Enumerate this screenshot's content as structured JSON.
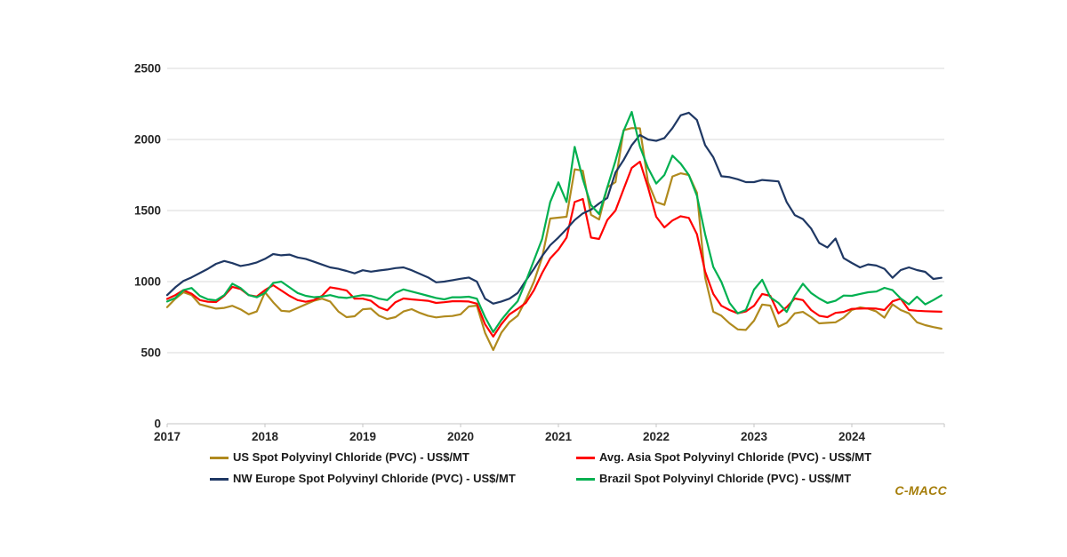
{
  "chart_data": {
    "type": "line",
    "title": "",
    "xlabel": "",
    "ylabel": "",
    "x_start_year": 2017,
    "points_per_year": 12,
    "x_tick_labels": [
      "2017",
      "2018",
      "2019",
      "2020",
      "2021",
      "2022",
      "2023",
      "2024"
    ],
    "ylim": [
      0,
      2500
    ],
    "y_tick_step": 500,
    "y_tick_labels": [
      "0",
      "500",
      "1000",
      "1500",
      "2000",
      "2500"
    ],
    "grid": true,
    "legend_position": "bottom",
    "series": [
      {
        "id": "us",
        "name": "US Spot Polyvinyl Chloride (PVC) - US$/MT",
        "color": "#B08A1E",
        "values": [
          820,
          880,
          925,
          905,
          840,
          825,
          810,
          815,
          830,
          805,
          770,
          790,
          925,
          855,
          795,
          790,
          815,
          840,
          865,
          880,
          860,
          790,
          750,
          756,
          805,
          810,
          760,
          737,
          750,
          790,
          806,
          780,
          760,
          748,
          755,
          758,
          770,
          825,
          831,
          640,
          519,
          640,
          715,
          760,
          870,
          1000,
          1170,
          1444,
          1450,
          1456,
          1790,
          1780,
          1470,
          1437,
          1663,
          1700,
          2065,
          2080,
          2078,
          1698,
          1560,
          1540,
          1740,
          1762,
          1750,
          1625,
          1029,
          788,
          760,
          706,
          664,
          660,
          725,
          839,
          831,
          683,
          710,
          777,
          787,
          750,
          706,
          710,
          714,
          746,
          800,
          819,
          810,
          790,
          746,
          840,
          800,
          777,
          714,
          694,
          680,
          669
        ]
      },
      {
        "id": "avg-asia",
        "name": "Avg. Asia Spot Polyvinyl Chloride (PVC) - US$/MT",
        "color": "#FF0000",
        "values": [
          878,
          905,
          940,
          915,
          870,
          858,
          856,
          900,
          963,
          948,
          905,
          895,
          940,
          975,
          938,
          900,
          870,
          858,
          870,
          900,
          960,
          950,
          938,
          880,
          880,
          865,
          820,
          798,
          855,
          881,
          875,
          870,
          865,
          850,
          855,
          862,
          862,
          860,
          845,
          700,
          613,
          700,
          770,
          808,
          850,
          940,
          1060,
          1163,
          1225,
          1310,
          1560,
          1581,
          1310,
          1300,
          1433,
          1500,
          1650,
          1800,
          1844,
          1663,
          1456,
          1381,
          1430,
          1460,
          1448,
          1334,
          1071,
          913,
          830,
          800,
          777,
          790,
          830,
          913,
          900,
          777,
          820,
          881,
          870,
          800,
          760,
          750,
          780,
          787,
          808,
          810,
          812,
          810,
          800,
          861,
          880,
          800,
          795,
          792,
          790,
          788
        ]
      },
      {
        "id": "nw-europe",
        "name": "NW Europe Spot Polyvinyl Chloride (PVC) - US$/MT",
        "color": "#1F3864",
        "values": [
          905,
          960,
          1005,
          1030,
          1060,
          1090,
          1125,
          1145,
          1130,
          1110,
          1120,
          1135,
          1160,
          1194,
          1185,
          1190,
          1170,
          1160,
          1140,
          1120,
          1100,
          1090,
          1075,
          1058,
          1080,
          1070,
          1078,
          1085,
          1095,
          1100,
          1080,
          1055,
          1030,
          995,
          1000,
          1010,
          1020,
          1029,
          1000,
          880,
          845,
          860,
          880,
          920,
          1006,
          1090,
          1180,
          1256,
          1310,
          1370,
          1433,
          1480,
          1506,
          1550,
          1589,
          1768,
          1855,
          1960,
          2032,
          2000,
          1990,
          2010,
          2080,
          2170,
          2188,
          2137,
          1960,
          1875,
          1741,
          1735,
          1720,
          1700,
          1700,
          1715,
          1710,
          1705,
          1560,
          1468,
          1440,
          1374,
          1272,
          1240,
          1303,
          1165,
          1131,
          1100,
          1121,
          1113,
          1090,
          1027,
          1081,
          1100,
          1081,
          1069,
          1019,
          1027
        ]
      },
      {
        "id": "brazil",
        "name": "Brazil Spot Polyvinyl Chloride (PVC) - US$/MT",
        "color": "#00B050",
        "values": [
          860,
          885,
          940,
          955,
          900,
          875,
          868,
          905,
          985,
          955,
          905,
          890,
          920,
          990,
          1000,
          960,
          920,
          900,
          890,
          895,
          905,
          890,
          885,
          895,
          905,
          900,
          880,
          870,
          920,
          945,
          930,
          915,
          900,
          885,
          875,
          890,
          890,
          894,
          880,
          750,
          645,
          730,
          800,
          862,
          1000,
          1150,
          1300,
          1560,
          1698,
          1560,
          1948,
          1720,
          1538,
          1475,
          1663,
          1850,
          2060,
          2194,
          1950,
          1800,
          1690,
          1750,
          1886,
          1830,
          1750,
          1604,
          1334,
          1103,
          998,
          850,
          777,
          800,
          944,
          1013,
          890,
          850,
          787,
          900,
          985,
          920,
          881,
          850,
          865,
          902,
          900,
          913,
          925,
          930,
          956,
          940,
          881,
          840,
          894,
          840,
          870,
          904
        ]
      }
    ]
  },
  "watermark": {
    "text": "C-MACC",
    "color": "#A67E0A"
  },
  "colors": {
    "gridline": "#D9D9D9",
    "axis": "#C6C6C6",
    "label": "#262626"
  }
}
